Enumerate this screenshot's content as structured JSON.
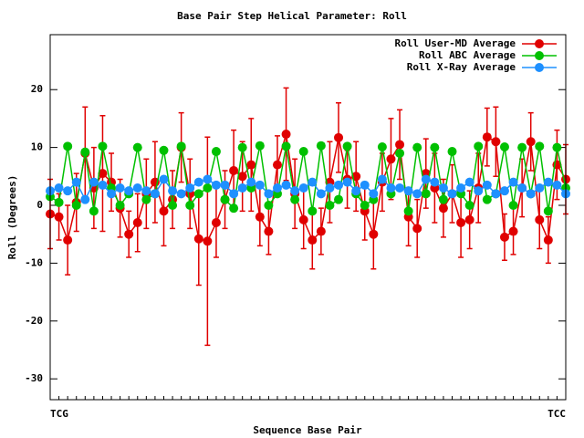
{
  "chart_data": {
    "type": "line",
    "title": "Base Pair Step Helical Parameter: Roll",
    "x_label": "Sequence Base Pair",
    "y_label": "Roll (Degrees)",
    "categories": [
      "TCG",
      null,
      null,
      null,
      null,
      null,
      null,
      null,
      null,
      null,
      null,
      null,
      null,
      null,
      null,
      null,
      null,
      null,
      null,
      null,
      null,
      null,
      null,
      null,
      null,
      null,
      null,
      null,
      null,
      null,
      null,
      null,
      null,
      null,
      null,
      null,
      null,
      null,
      null,
      null,
      null,
      null,
      null,
      null,
      null,
      null,
      null,
      null,
      null,
      null,
      null,
      null,
      null,
      null,
      null,
      null,
      null,
      null,
      null,
      "TCC"
    ],
    "ylim": [
      -33.6,
      29.5
    ],
    "yticks": [
      -30,
      -20,
      -10,
      0,
      10,
      20
    ],
    "grid": false,
    "legend": "top-right",
    "series": [
      {
        "name": "Roll User-MD Average",
        "color": "#e00000",
        "values": [
          -1.5,
          -2,
          -6,
          0.5,
          9,
          3,
          5.5,
          4,
          -0.5,
          -5,
          -3,
          2,
          4,
          -1,
          1,
          10,
          2,
          -5.8,
          -6.2,
          -3,
          1,
          6,
          5,
          7,
          -2,
          -4.5,
          7,
          12.3,
          2,
          -2.5,
          -6,
          -4.5,
          4,
          11.7,
          4.5,
          5,
          -1,
          -5,
          4,
          8,
          10.5,
          -2,
          -4,
          5.5,
          3,
          -0.5,
          2,
          -3,
          -2.5,
          3,
          11.8,
          11,
          -5.5,
          -4.5,
          3,
          11,
          -2.5,
          -6,
          7,
          4.5
        ],
        "errors": [
          6,
          4,
          6,
          5,
          8,
          7,
          10,
          5,
          5,
          4,
          5,
          6,
          7,
          6,
          5,
          6,
          6,
          8,
          18,
          6,
          5,
          7,
          6,
          8,
          5,
          4,
          5,
          8,
          6,
          5,
          5,
          4,
          7,
          6,
          5,
          6,
          5,
          6,
          5,
          7,
          6,
          5,
          5,
          6,
          6,
          5,
          5,
          6,
          5,
          6,
          5,
          6,
          4,
          4,
          5,
          5,
          5,
          4,
          6,
          6
        ]
      },
      {
        "name": "Roll ABC Average",
        "color": "#00c000",
        "values": [
          1.5,
          0.5,
          10.2,
          0,
          9.2,
          -1,
          10.2,
          3,
          0,
          2,
          10,
          1,
          2,
          9.5,
          0,
          10.2,
          0,
          2,
          3,
          9.3,
          1,
          -0.5,
          10,
          3,
          10.3,
          0,
          2,
          10.2,
          1,
          9.3,
          -1,
          10.3,
          0,
          1,
          10.2,
          2,
          0,
          1,
          10.1,
          2,
          9,
          -1,
          10,
          2,
          10,
          1,
          9.3,
          2,
          0,
          10.2,
          1,
          2,
          10.1,
          0,
          10,
          2,
          10.2,
          -1,
          10,
          3
        ]
      },
      {
        "name": "Roll X-Ray Average",
        "color": "#1e90ff",
        "values": [
          2.5,
          3,
          2.5,
          4,
          1,
          4,
          3.5,
          2,
          3,
          2.5,
          3,
          2.5,
          2,
          4.5,
          2.5,
          2,
          3,
          4,
          4.5,
          3.5,
          3.5,
          2,
          3,
          4,
          3.5,
          2,
          3,
          3.5,
          2.5,
          3,
          4,
          2,
          3,
          3.5,
          4,
          2.5,
          3.5,
          2,
          4.5,
          3,
          3,
          2.5,
          2,
          4.5,
          4,
          3,
          2,
          3,
          4,
          2.5,
          3.5,
          2,
          2.5,
          4,
          3,
          2,
          3,
          4,
          3.5,
          2
        ]
      }
    ]
  }
}
